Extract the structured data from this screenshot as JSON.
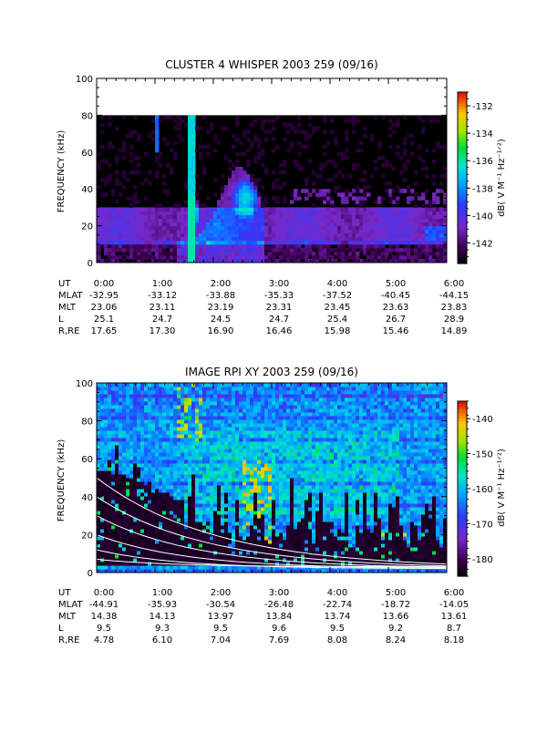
{
  "chart_data": [
    {
      "type": "heatmap",
      "title": "CLUSTER 4 WHISPER 2003 259 (09/16)",
      "ylabel": "FREQUENCY (kHz)",
      "ylim": [
        0,
        100
      ],
      "yticks": [
        "0",
        "20",
        "40",
        "60",
        "80",
        "100"
      ],
      "xlim_hours": [
        0,
        6
      ],
      "data_ceiling_khz": 80,
      "colorbar": {
        "label": "dB( V M⁻¹ Hz⁻¹ᐟ²)",
        "range": [
          -143.5,
          -131
        ],
        "ticks": [
          "-132",
          "-134",
          "-136",
          "-138",
          "-140",
          "-142"
        ],
        "tick_values": [
          -132,
          -134,
          -136,
          -138,
          -140,
          -142
        ]
      },
      "orbit_table": {
        "rows": [
          {
            "label": "UT",
            "values": [
              "0:00",
              "1:00",
              "2:00",
              "3:00",
              "4:00",
              "5:00",
              "6:00"
            ]
          },
          {
            "label": "MLAT",
            "values": [
              "-32.95",
              "-33.12",
              "-33.88",
              "-35.33",
              "-37.52",
              "-40.45",
              "-44.15"
            ]
          },
          {
            "label": "MLT",
            "values": [
              "23.06",
              "23.11",
              "23.19",
              "23.31",
              "23.45",
              "23.63",
              "23.83"
            ]
          },
          {
            "label": "L",
            "values": [
              "25.1",
              "24.7",
              "24.5",
              "24.7",
              "25.4",
              "26.7",
              "28.9"
            ]
          },
          {
            "label": "R,RE",
            "values": [
              "17.65",
              "17.30",
              "16.90",
              "16.46",
              "15.98",
              "15.46",
              "14.89"
            ]
          }
        ]
      }
    },
    {
      "type": "heatmap",
      "title": "IMAGE RPI XY 2003 259 (09/16)",
      "ylabel": "FREQUENCY (kHz)",
      "ylim": [
        0,
        100
      ],
      "yticks": [
        "0",
        "20",
        "40",
        "60",
        "80",
        "100"
      ],
      "xlim_hours": [
        0,
        6
      ],
      "colorbar": {
        "label": "dB( V M⁻¹ Hz⁻¹ᐟ²)",
        "range": [
          -185,
          -135
        ],
        "ticks": [
          "-140",
          "-150",
          "-160",
          "-170",
          "-180"
        ],
        "tick_values": [
          -140,
          -150,
          -160,
          -170,
          -180
        ]
      },
      "orbit_table": {
        "rows": [
          {
            "label": "UT",
            "values": [
              "0:00",
              "1:00",
              "2:00",
              "3:00",
              "4:00",
              "5:00",
              "6:00"
            ]
          },
          {
            "label": "MLAT",
            "values": [
              "-44.91",
              "-35.93",
              "-30.54",
              "-26.48",
              "-22.74",
              "-18.72",
              "-14.05"
            ]
          },
          {
            "label": "MLT",
            "values": [
              "14.38",
              "14.13",
              "13.97",
              "13.84",
              "13.74",
              "13.66",
              "13.61"
            ]
          },
          {
            "label": "L",
            "values": [
              "9.5",
              "9.3",
              "9.5",
              "9.6",
              "9.5",
              "9.2",
              "8.7"
            ]
          },
          {
            "label": "R,RE",
            "values": [
              "4.78",
              "6.10",
              "7.04",
              "7.69",
              "8.08",
              "8.24",
              "8.18"
            ]
          }
        ]
      }
    }
  ]
}
